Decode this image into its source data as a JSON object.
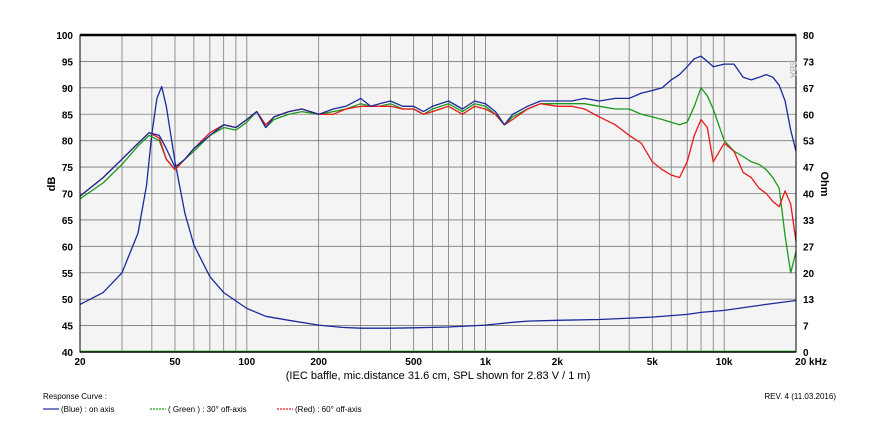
{
  "chart_data": {
    "type": "line",
    "title": "",
    "caption": "(IEC baffle, mic.distance 31.6 cm, SPL shown for 2.83 V / 1 m)",
    "revision": "REV. 4 (11.03.2016)",
    "watermark": "SBA",
    "x_axis": {
      "scale": "log",
      "range": [
        20,
        20000
      ],
      "ticks": [
        "20",
        "50",
        "100",
        "200",
        "500",
        "1k",
        "2k",
        "5k",
        "10k",
        "20 kHz"
      ],
      "tick_values": [
        20,
        50,
        100,
        200,
        500,
        1000,
        2000,
        5000,
        10000,
        20000
      ]
    },
    "y_axis_left": {
      "label": "dB",
      "range": [
        40,
        100
      ],
      "ticks": [
        "100",
        "95",
        "90",
        "85",
        "80",
        "75",
        "70",
        "65",
        "60",
        "55",
        "50",
        "45",
        "40"
      ]
    },
    "y_axis_right": {
      "label": "Ohm",
      "range": [
        0,
        80
      ],
      "ticks": [
        "80",
        "73",
        "67",
        "60",
        "53",
        "47",
        "40",
        "33",
        "27",
        "20",
        "13",
        "7",
        "0"
      ]
    },
    "grid": true,
    "legend": {
      "title": "Response Curve :",
      "entries": [
        {
          "label": "(Blue)  : on axis",
          "color": "#1a2a9c"
        },
        {
          "label": "( Green ) : 30° off-axis",
          "color": "#1a9a1a"
        },
        {
          "label": "(Red) : 60° off-axis",
          "color": "#e81a1a"
        }
      ]
    },
    "series": [
      {
        "color": "#1a2a9c",
        "axis": "left",
        "x": [
          20,
          25,
          30,
          35,
          39,
          43,
          46,
          50,
          55,
          60,
          70,
          80,
          90,
          100,
          110,
          120,
          130,
          150,
          170,
          200,
          230,
          260,
          300,
          330,
          360,
          400,
          450,
          500,
          550,
          600,
          700,
          800,
          900,
          1000,
          1100,
          1200,
          1300,
          1500,
          1700,
          2000,
          2300,
          2600,
          3000,
          3500,
          4000,
          4500,
          5000,
          5500,
          6000,
          6500,
          7000,
          7500,
          8000,
          8500,
          9000,
          10000,
          11000,
          12000,
          13000,
          14000,
          15000,
          16000,
          17000,
          18000,
          19000,
          20000
        ],
        "y": [
          69.5,
          73.0,
          76.5,
          79.5,
          81.5,
          81.0,
          78.5,
          75.0,
          76.5,
          78.5,
          81.0,
          83.0,
          82.5,
          84.0,
          85.5,
          82.5,
          84.5,
          85.5,
          86.0,
          85.0,
          86.0,
          86.5,
          88.0,
          86.5,
          87.0,
          87.5,
          86.5,
          86.5,
          85.5,
          86.5,
          87.5,
          86.0,
          87.5,
          87.0,
          85.5,
          83.0,
          85.0,
          86.5,
          87.5,
          87.5,
          87.5,
          88.0,
          87.5,
          88.0,
          88.0,
          89.0,
          89.5,
          90.0,
          91.5,
          92.5,
          94.0,
          95.5,
          96.0,
          95.0,
          94.0,
          94.5,
          94.5,
          92.0,
          91.5,
          92.0,
          92.5,
          92.0,
          90.5,
          87.5,
          82.0,
          78.0
        ]
      },
      {
        "color": "#1a9a1a",
        "axis": "left",
        "x": [
          20,
          25,
          30,
          35,
          39,
          43,
          46,
          50,
          55,
          60,
          70,
          80,
          90,
          100,
          110,
          120,
          130,
          150,
          170,
          200,
          230,
          260,
          300,
          330,
          360,
          400,
          450,
          500,
          550,
          600,
          700,
          800,
          900,
          1000,
          1100,
          1200,
          1300,
          1500,
          1700,
          2000,
          2300,
          2600,
          3000,
          3500,
          4000,
          4500,
          5000,
          5500,
          6000,
          6500,
          7000,
          7500,
          8000,
          8500,
          9000,
          10000,
          11000,
          12000,
          13000,
          14000,
          15000,
          16000,
          17000,
          18000,
          19000,
          20000
        ],
        "y": [
          69.0,
          72.0,
          75.5,
          79.0,
          81.0,
          80.0,
          76.5,
          74.5,
          76.5,
          78.0,
          81.0,
          82.5,
          82.0,
          83.5,
          85.5,
          82.5,
          84.0,
          85.0,
          85.5,
          85.0,
          85.5,
          86.0,
          87.0,
          86.5,
          86.5,
          87.0,
          86.0,
          86.0,
          85.0,
          86.0,
          87.0,
          85.5,
          87.0,
          86.5,
          85.0,
          83.0,
          84.5,
          86.0,
          87.0,
          87.0,
          87.0,
          87.0,
          86.5,
          86.0,
          86.0,
          85.0,
          84.5,
          84.0,
          83.5,
          83.0,
          83.5,
          86.5,
          90.0,
          88.5,
          86.0,
          80.0,
          78.0,
          77.0,
          76.0,
          75.5,
          74.5,
          73.0,
          71.0,
          62.0,
          55.0,
          59.0
        ]
      },
      {
        "color": "#e81a1a",
        "axis": "left",
        "x": [
          20,
          25,
          30,
          35,
          39,
          43,
          46,
          50,
          55,
          60,
          70,
          80,
          90,
          100,
          110,
          120,
          130,
          150,
          170,
          200,
          230,
          260,
          300,
          330,
          360,
          400,
          450,
          500,
          550,
          600,
          700,
          800,
          900,
          1000,
          1100,
          1200,
          1300,
          1500,
          1700,
          2000,
          2300,
          2600,
          3000,
          3500,
          4000,
          4500,
          5000,
          5500,
          6000,
          6500,
          7000,
          7500,
          8000,
          8500,
          9000,
          10000,
          11000,
          12000,
          13000,
          14000,
          15000,
          16000,
          17000,
          18000,
          19000,
          20000
        ],
        "y": [
          69.5,
          73.0,
          76.5,
          79.5,
          81.5,
          80.5,
          76.5,
          74.5,
          76.5,
          78.5,
          81.5,
          83.0,
          82.5,
          84.0,
          85.5,
          83.0,
          84.5,
          85.5,
          86.0,
          85.0,
          85.0,
          86.0,
          86.5,
          86.5,
          86.5,
          86.5,
          86.0,
          86.0,
          85.0,
          85.5,
          86.5,
          85.0,
          86.5,
          86.0,
          85.0,
          83.0,
          84.0,
          86.0,
          87.0,
          86.5,
          86.5,
          86.0,
          84.5,
          83.0,
          81.0,
          79.5,
          76.0,
          74.5,
          73.5,
          73.0,
          76.0,
          81.0,
          84.0,
          82.5,
          76.0,
          79.5,
          78.0,
          74.0,
          73.0,
          71.0,
          70.0,
          68.5,
          67.5,
          70.5,
          68.0,
          61.0
        ]
      },
      {
        "color": "#1a2a9c",
        "axis": "right",
        "x": [
          20,
          25,
          30,
          35,
          38,
          40,
          42,
          44,
          46,
          50,
          55,
          60,
          70,
          80,
          100,
          120,
          150,
          200,
          250,
          300,
          400,
          500,
          700,
          1000,
          1300,
          1500,
          2000,
          3000,
          5000,
          7000,
          8000,
          10000,
          15000,
          20000
        ],
        "y": [
          12.0,
          15.0,
          20.0,
          30.0,
          42.0,
          55.0,
          64.0,
          67.0,
          62.0,
          48.0,
          35.0,
          27.0,
          19.0,
          15.0,
          11.0,
          9.0,
          8.0,
          6.8,
          6.2,
          6.0,
          6.0,
          6.1,
          6.3,
          6.8,
          7.5,
          7.8,
          8.0,
          8.2,
          8.8,
          9.5,
          10.0,
          10.5,
          12.0,
          13.0
        ]
      }
    ]
  }
}
